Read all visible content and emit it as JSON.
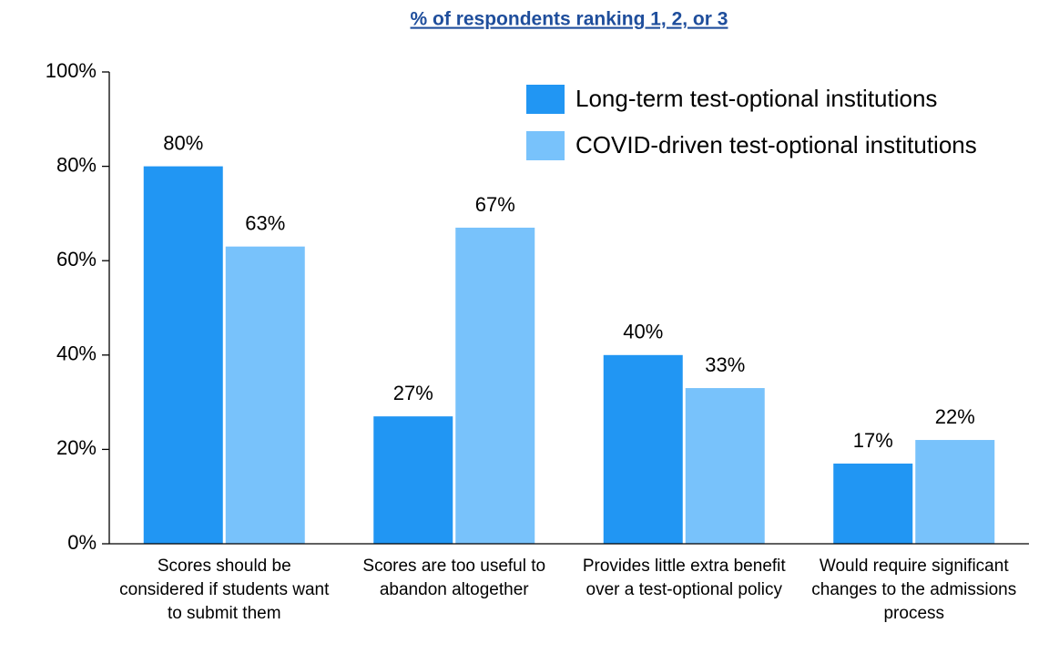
{
  "chart_data": {
    "type": "bar",
    "title": "% of respondents ranking 1, 2, or 3",
    "categories": [
      "Scores should be considered if students want to submit them",
      "Scores are too useful to abandon altogether",
      "Provides little extra benefit over a test-optional policy",
      "Would require significant changes to the admissions process"
    ],
    "series": [
      {
        "name": "Long-term test-optional institutions",
        "color": "#2196f3",
        "values": [
          80,
          27,
          40,
          17
        ],
        "value_labels": [
          "80%",
          "27%",
          "40%",
          "17%"
        ]
      },
      {
        "name": "COVID-driven test-optional institutions",
        "color": "#78c2fb",
        "values": [
          63,
          67,
          33,
          22
        ],
        "value_labels": [
          "63%",
          "67%",
          "33%",
          "22%"
        ]
      }
    ],
    "ylim": [
      0,
      100
    ],
    "yticks": [
      {
        "value": 0,
        "label": "0%"
      },
      {
        "value": 20,
        "label": "20%"
      },
      {
        "value": 40,
        "label": "40%"
      },
      {
        "value": 60,
        "label": "60%"
      },
      {
        "value": 80,
        "label": "80%"
      },
      {
        "value": 100,
        "label": "100%"
      }
    ],
    "grid": false,
    "legend": "upper right"
  }
}
